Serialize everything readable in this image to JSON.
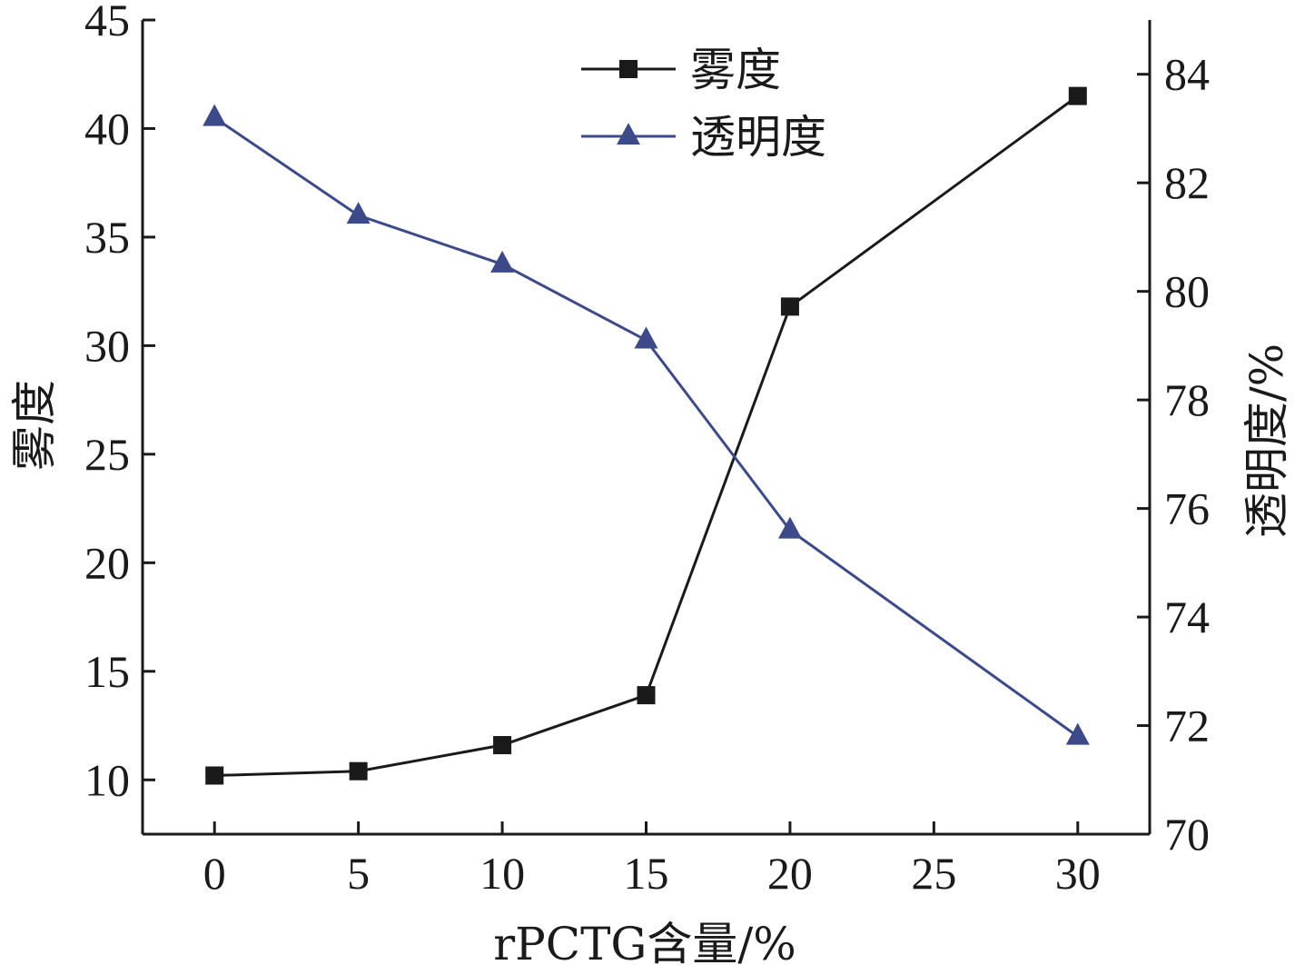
{
  "chart_data": {
    "type": "line",
    "x": [
      0,
      5,
      10,
      15,
      20,
      30
    ],
    "xticks": [
      "0",
      "5",
      "10",
      "15",
      "20",
      "25",
      "30"
    ],
    "xlim": [
      -2.5,
      32.5
    ],
    "xlabel": "rPCTG含量/%",
    "y_left": {
      "label": "雾度",
      "lim": [
        7.5,
        45
      ],
      "ticks": [
        "10",
        "15",
        "20",
        "25",
        "30",
        "35",
        "40",
        "45"
      ]
    },
    "y_right": {
      "label": "透明度/%",
      "lim": [
        70,
        85
      ],
      "ticks": [
        "70",
        "72",
        "74",
        "76",
        "78",
        "80",
        "82",
        "84"
      ]
    },
    "series": [
      {
        "name": "雾度",
        "axis": "left",
        "marker": "square",
        "color": "#1a1a1a",
        "values": [
          10.2,
          10.4,
          11.6,
          13.9,
          31.8,
          41.5
        ]
      },
      {
        "name": "透明度",
        "axis": "right",
        "marker": "triangle",
        "color": "#3d4a8a",
        "values": [
          83.2,
          81.4,
          80.5,
          79.1,
          75.6,
          71.8
        ]
      }
    ],
    "legend_position": "top-center",
    "grid": false
  }
}
